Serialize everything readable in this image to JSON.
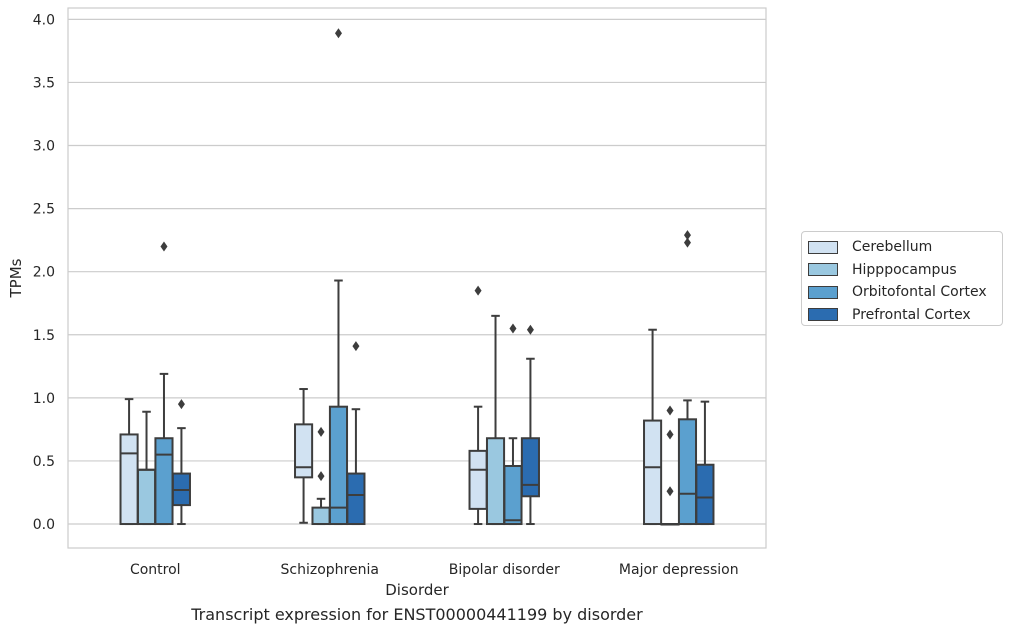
{
  "chart_data": {
    "type": "box",
    "title": "",
    "xlabel": "Disorder",
    "ylabel": "TPMs",
    "caption": "Transcript expression for ENST00000441199 by disorder",
    "ylim": [
      -0.19,
      4.09
    ],
    "yticks": [
      "0.0",
      "0.5",
      "1.0",
      "1.5",
      "2.0",
      "2.5",
      "3.0",
      "3.5",
      "4.0"
    ],
    "grid": true,
    "legend_position": "right",
    "categories": [
      "Control",
      "Schizophrenia",
      "Bipolar disorder",
      "Major depression"
    ],
    "series": [
      {
        "name": "Cerebellum",
        "color": "#d1e2f2",
        "boxes": [
          {
            "q1": 0.0,
            "median": 0.56,
            "q3": 0.71,
            "whisker_low": 0.0,
            "whisker_high": 0.99,
            "outliers": []
          },
          {
            "q1": 0.37,
            "median": 0.45,
            "q3": 0.79,
            "whisker_low": 0.01,
            "whisker_high": 1.07,
            "outliers": []
          },
          {
            "q1": 0.12,
            "median": 0.43,
            "q3": 0.58,
            "whisker_low": 0.0,
            "whisker_high": 0.93,
            "outliers": [
              1.85
            ]
          },
          {
            "q1": 0.0,
            "median": 0.45,
            "q3": 0.82,
            "whisker_low": 0.0,
            "whisker_high": 1.54,
            "outliers": []
          }
        ]
      },
      {
        "name": "Hipppocampus",
        "color": "#9ac8e0",
        "boxes": [
          {
            "q1": 0.0,
            "median": 0.43,
            "q3": 0.43,
            "whisker_low": 0.0,
            "whisker_high": 0.89,
            "outliers": []
          },
          {
            "q1": 0.0,
            "median": 0.0,
            "q3": 0.13,
            "whisker_low": 0.0,
            "whisker_high": 0.2,
            "outliers": [
              0.38,
              0.73
            ]
          },
          {
            "q1": 0.0,
            "median": 0.0,
            "q3": 0.68,
            "whisker_low": 0.0,
            "whisker_high": 1.65,
            "outliers": []
          },
          {
            "q1": 0.0,
            "median": 0.0,
            "q3": 0.0,
            "whisker_low": 0.0,
            "whisker_high": 0.0,
            "outliers": [
              0.26,
              0.71,
              0.9
            ]
          }
        ]
      },
      {
        "name": "Orbitofontal Cortex",
        "color": "#5ba0cf",
        "boxes": [
          {
            "q1": 0.0,
            "median": 0.55,
            "q3": 0.68,
            "whisker_low": 0.0,
            "whisker_high": 1.19,
            "outliers": [
              2.2
            ]
          },
          {
            "q1": 0.0,
            "median": 0.13,
            "q3": 0.93,
            "whisker_low": 0.0,
            "whisker_high": 1.93,
            "outliers": [
              3.89
            ]
          },
          {
            "q1": 0.0,
            "median": 0.03,
            "q3": 0.46,
            "whisker_low": 0.0,
            "whisker_high": 0.68,
            "outliers": [
              1.55
            ]
          },
          {
            "q1": 0.0,
            "median": 0.24,
            "q3": 0.83,
            "whisker_low": 0.0,
            "whisker_high": 0.98,
            "outliers": [
              2.23,
              2.29
            ]
          }
        ]
      },
      {
        "name": "Prefrontal Cortex",
        "color": "#2b6cb0",
        "boxes": [
          {
            "q1": 0.15,
            "median": 0.27,
            "q3": 0.4,
            "whisker_low": 0.0,
            "whisker_high": 0.76,
            "outliers": [
              0.95
            ]
          },
          {
            "q1": 0.0,
            "median": 0.23,
            "q3": 0.4,
            "whisker_low": 0.0,
            "whisker_high": 0.91,
            "outliers": [
              1.41
            ]
          },
          {
            "q1": 0.22,
            "median": 0.31,
            "q3": 0.68,
            "whisker_low": 0.0,
            "whisker_high": 1.31,
            "outliers": [
              1.54
            ]
          },
          {
            "q1": 0.0,
            "median": 0.21,
            "q3": 0.47,
            "whisker_low": 0.0,
            "whisker_high": 0.97,
            "outliers": []
          }
        ]
      }
    ]
  }
}
